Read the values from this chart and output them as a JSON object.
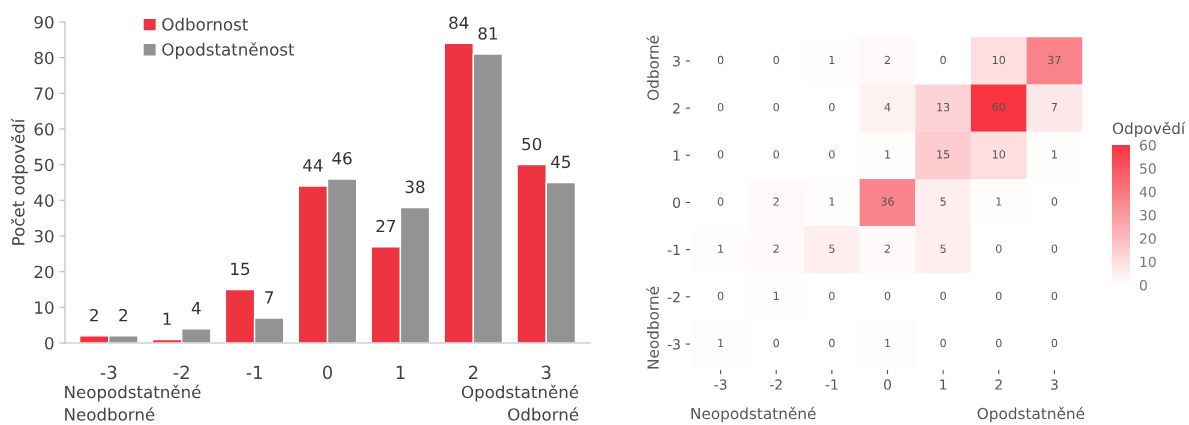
{
  "chart_data": [
    {
      "type": "bar",
      "categories": [
        "-3",
        "-2",
        "-1",
        "0",
        "1",
        "2",
        "3"
      ],
      "ylabel": "Počet odpovědí",
      "ylim": [
        0,
        90
      ],
      "yticks": [
        0,
        10,
        20,
        30,
        40,
        50,
        60,
        70,
        80,
        90
      ],
      "data_labels": true,
      "legend": "top left",
      "series": [
        {
          "name": "Odbornost",
          "color": "#ee3440",
          "values": [
            2,
            1,
            15,
            44,
            27,
            84,
            50
          ]
        },
        {
          "name": "Opodstatněnost",
          "color": "#939393",
          "values": [
            2,
            4,
            7,
            46,
            38,
            81,
            45
          ]
        }
      ],
      "annotations": [
        "Neopodstatněné\nNeodborné",
        "Opodstatněné\nOdborné"
      ]
    },
    {
      "type": "heatmap",
      "categories": [
        "-3",
        "-2",
        "-1",
        "0",
        "1",
        "2",
        "3"
      ],
      "y_categories": [
        "3",
        "2",
        "1",
        "0",
        "-1",
        "-2",
        "-3"
      ],
      "color": "#f7343f",
      "data_labels": true,
      "clabel": "Odpovědí",
      "clim": [
        0,
        60
      ],
      "cticks": [
        0,
        10,
        20,
        30,
        40,
        50,
        60
      ],
      "cells": [
        [
          0,
          0,
          1,
          2,
          0,
          10,
          37
        ],
        [
          0,
          0,
          0,
          4,
          13,
          60,
          7
        ],
        [
          0,
          0,
          0,
          1,
          15,
          10,
          1
        ],
        [
          0,
          2,
          1,
          36,
          5,
          1,
          0
        ],
        [
          1,
          2,
          5,
          2,
          5,
          0,
          0
        ],
        [
          0,
          1,
          0,
          0,
          0,
          0,
          0
        ],
        [
          1,
          0,
          0,
          1,
          0,
          0,
          0
        ]
      ],
      "annotations": [
        "Odborné",
        "Neodborné",
        "Neopodstatněné",
        "Opodstatněné"
      ]
    }
  ]
}
